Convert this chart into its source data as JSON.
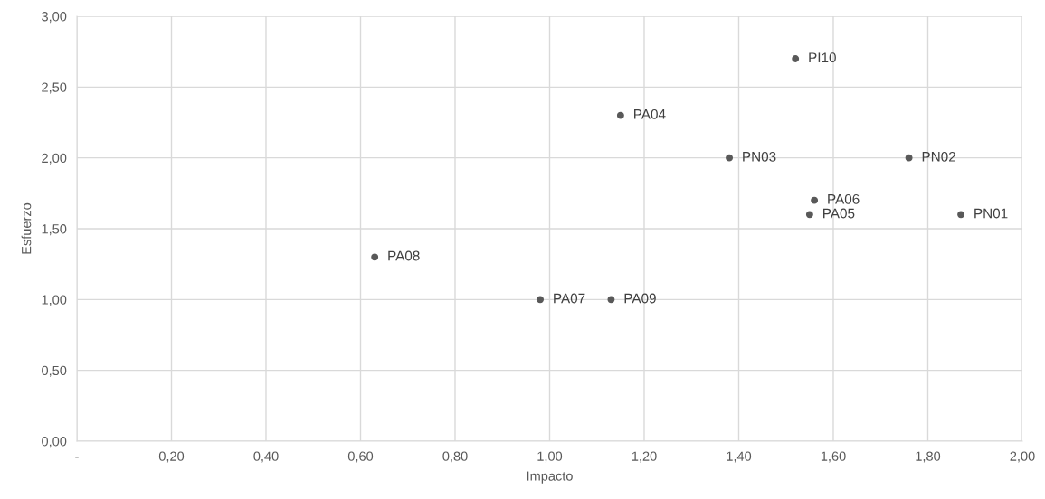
{
  "chart_data": {
    "type": "scatter",
    "xlabel": "Impacto",
    "ylabel": "Esfuerzo",
    "x": [
      1.52,
      1.15,
      1.38,
      1.76,
      1.56,
      1.55,
      1.87,
      0.63,
      0.98,
      1.13
    ],
    "series": [
      {
        "color": "#595959",
        "values": [
          2.7,
          2.3,
          2.0,
          2.0,
          1.7,
          1.6,
          1.6,
          1.3,
          1.0,
          1.0
        ]
      }
    ],
    "annotations": [
      {
        "text": "PI10",
        "x": 1.52,
        "y": 2.7
      },
      {
        "text": "PA04",
        "x": 1.15,
        "y": 2.3
      },
      {
        "text": "PN03",
        "x": 1.38,
        "y": 2.0
      },
      {
        "text": "PN02",
        "x": 1.76,
        "y": 2.0
      },
      {
        "text": "PA06",
        "x": 1.56,
        "y": 1.7
      },
      {
        "text": "PA05",
        "x": 1.55,
        "y": 1.6
      },
      {
        "text": "PN01",
        "x": 1.87,
        "y": 1.6
      },
      {
        "text": "PA08",
        "x": 0.63,
        "y": 1.3
      },
      {
        "text": "PA07",
        "x": 0.98,
        "y": 1.0
      },
      {
        "text": "PA09",
        "x": 1.13,
        "y": 1.0
      }
    ],
    "xlim": [
      0,
      2
    ],
    "xticks": [
      {
        "value": 0,
        "label": "-"
      },
      {
        "value": 0.2,
        "label": "0,20"
      },
      {
        "value": 0.4,
        "label": "0,40"
      },
      {
        "value": 0.6,
        "label": "0,60"
      },
      {
        "value": 0.8,
        "label": "0,80"
      },
      {
        "value": 1.0,
        "label": "1,00"
      },
      {
        "value": 1.2,
        "label": "1,20"
      },
      {
        "value": 1.4,
        "label": "1,40"
      },
      {
        "value": 1.6,
        "label": "1,60"
      },
      {
        "value": 1.8,
        "label": "1,80"
      },
      {
        "value": 2.0,
        "label": "2,00"
      }
    ],
    "ylim": [
      0,
      3
    ],
    "yticks": [
      {
        "value": 0,
        "label": "0,00"
      },
      {
        "value": 0.5,
        "label": "0,50"
      },
      {
        "value": 1.0,
        "label": "1,00"
      },
      {
        "value": 1.5,
        "label": "1,50"
      },
      {
        "value": 2.0,
        "label": "2,00"
      },
      {
        "value": 2.5,
        "label": "2,50"
      },
      {
        "value": 3.0,
        "label": "3,00"
      }
    ],
    "grid": true,
    "marker": "circle",
    "legend": false
  }
}
